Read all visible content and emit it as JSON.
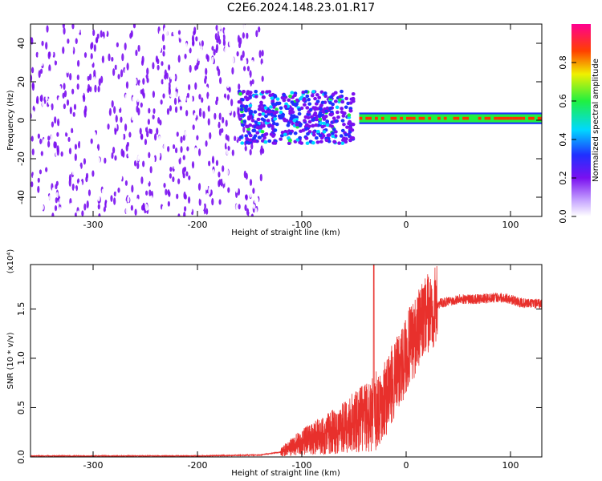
{
  "title": "C2E6.2024.148.23.01.R17",
  "colors": {
    "trace": "#e8302c",
    "spectro_purple": "#7a10f0",
    "frame": "#000000"
  },
  "chart_data": [
    {
      "type": "heatmap",
      "title": "C2E6.2024.148.23.01.R17",
      "xlabel": "Height of straight line (km)",
      "ylabel": "Frequency (Hz)",
      "xlim": [
        -360,
        130
      ],
      "ylim": [
        -50,
        50
      ],
      "x_ticks": [
        "-300",
        "-200",
        "-100",
        "0",
        "100"
      ],
      "y_ticks": [
        "-40",
        "-20",
        "0",
        "20",
        "40"
      ],
      "colorbar": {
        "label": "Normalized spectral amplitude",
        "range": [
          0,
          1
        ],
        "ticks": [
          "0.0",
          "0.2",
          "0.4",
          "0.6",
          "0.8"
        ],
        "colormap": "rainbow (white→purple→blue→cyan→green→yellow→red→magenta)"
      },
      "regions": [
        {
          "x_range": [
            -360,
            -160
          ],
          "freq_range": [
            -50,
            50
          ],
          "amplitude": 0.1,
          "note": "broadband noise"
        },
        {
          "x_range": [
            -160,
            -50
          ],
          "freq_range": [
            -12,
            15
          ],
          "amplitude": 0.35,
          "note": "turbulent band"
        },
        {
          "x_range": [
            -45,
            130
          ],
          "freq_center": 1,
          "freq_halfwidth": 3,
          "amplitude": 0.9,
          "note": "stable carrier"
        }
      ],
      "grid": false
    },
    {
      "type": "line",
      "xlabel": "Height of straight line (km)",
      "ylabel": "SNR (10 * v/v)",
      "y_multiplier": "(x10⁴)",
      "xlim": [
        -360,
        130
      ],
      "ylim": [
        0,
        1.95
      ],
      "x_ticks": [
        "-300",
        "-200",
        "-100",
        "0",
        "100"
      ],
      "y_ticks": [
        "0.0",
        "0.5",
        "1.0",
        "1.5"
      ],
      "series": [
        {
          "x": [
            -360,
            -200,
            -140,
            -120,
            -100,
            -80,
            -60,
            -40,
            -30,
            -20,
            -10,
            0,
            10,
            20,
            30,
            50,
            70,
            90,
            100,
            110,
            130
          ],
          "values": [
            0.01,
            0.01,
            0.02,
            0.05,
            0.15,
            0.22,
            0.3,
            0.4,
            0.45,
            0.6,
            0.8,
            1.05,
            1.25,
            1.45,
            1.55,
            1.6,
            1.6,
            1.62,
            1.6,
            1.56,
            1.55
          ]
        }
      ],
      "spike": {
        "x": -31,
        "value": 1.95
      },
      "grid": false
    }
  ]
}
